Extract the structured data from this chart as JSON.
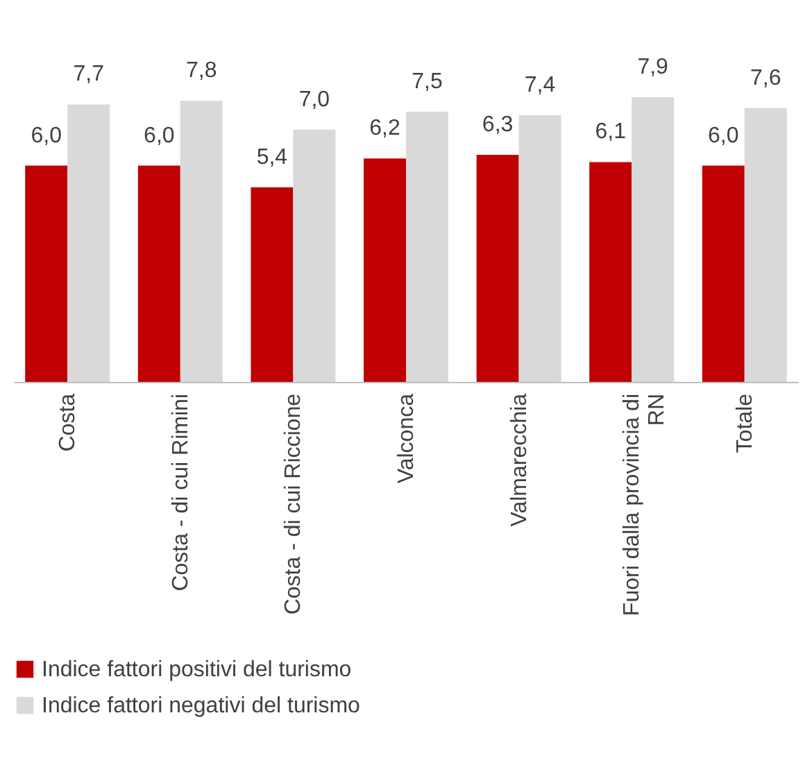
{
  "chart_data": {
    "type": "bar",
    "categories": [
      "Costa",
      "Costa - di cui Rimini",
      "Costa - di cui Riccione",
      "Valconca",
      "Valmarecchia",
      "Fuori dalla provincia di RN",
      "Totale"
    ],
    "series": [
      {
        "name": "Indice fattori positivi del turismo",
        "color": "#c00000",
        "values": [
          6.0,
          6.0,
          5.4,
          6.2,
          6.3,
          6.1,
          6.0
        ],
        "value_labels": [
          "6,0",
          "6,0",
          "5,4",
          "6,2",
          "6,3",
          "6,1",
          "6,0"
        ]
      },
      {
        "name": "Indice fattori negativi del turismo",
        "color": "#d9d9d9",
        "values": [
          7.7,
          7.8,
          7.0,
          7.5,
          7.4,
          7.9,
          7.6
        ],
        "value_labels": [
          "7,7",
          "7,8",
          "7,0",
          "7,5",
          "7,4",
          "7,9",
          "7,6"
        ]
      }
    ],
    "legend": "bottom",
    "grid": false
  }
}
